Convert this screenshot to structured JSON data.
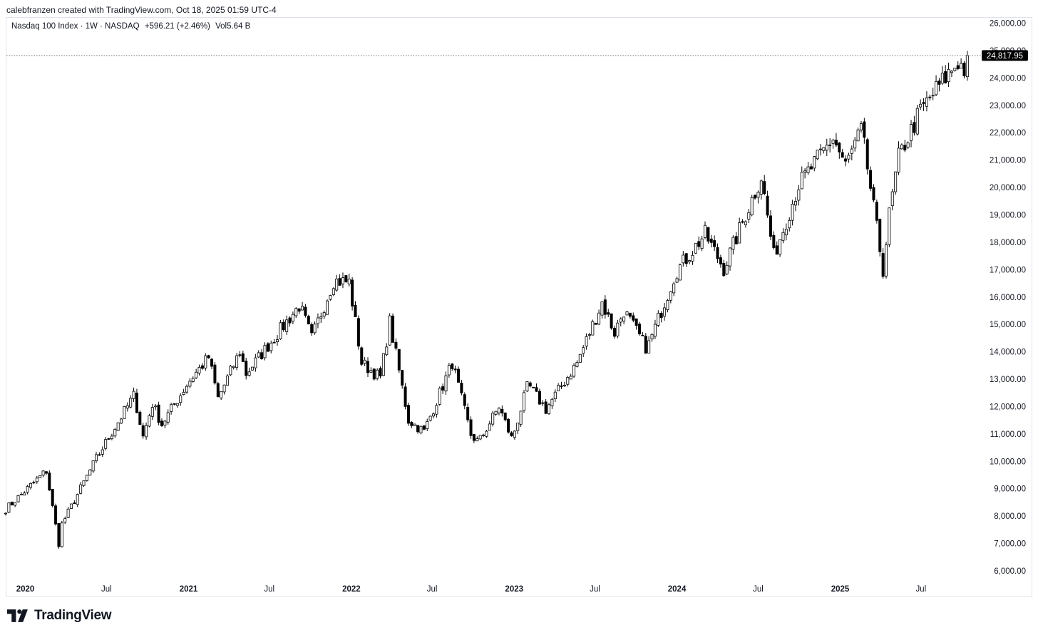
{
  "attribution": "calebfranzen created with TradingView.com, Oct 18, 2025 01:59 UTC-4",
  "legend": {
    "symbol": "Nasdaq 100 Index · 1W · NASDAQ",
    "change": "+596.21 (+2.46%)",
    "volume": "Vol5.64 B"
  },
  "brand": "TradingView",
  "colors": {
    "up": "#ffffff",
    "down": "#000000",
    "wick": "#000000",
    "price_tag": "#000000",
    "price_line": "#787b86"
  },
  "chart_data": {
    "type": "candlestick",
    "title": "Nasdaq 100 Index · 1W · NASDAQ",
    "interval": "1W",
    "last_price": 24817.95,
    "last_price_label": "24,817.95",
    "y_axis": {
      "range": [
        5700,
        26300
      ],
      "ticks": [
        6000,
        7000,
        8000,
        9000,
        10000,
        11000,
        12000,
        13000,
        14000,
        15000,
        16000,
        17000,
        18000,
        19000,
        20000,
        21000,
        22000,
        23000,
        24000,
        25000,
        26000
      ],
      "tick_labels": [
        "6,000.00",
        "7,000.00",
        "8,000.00",
        "9,000.00",
        "10,000.00",
        "11,000.00",
        "12,000.00",
        "13,000.00",
        "14,000.00",
        "15,000.00",
        "16,000.00",
        "17,000.00",
        "18,000.00",
        "19,000.00",
        "20,000.00",
        "21,000.00",
        "22,000.00",
        "23,000.00",
        "24,000.00",
        "25,000.00",
        "26,000.00"
      ]
    },
    "x_axis": {
      "range": [
        "2019-11-18",
        "2025-11-03"
      ],
      "ticks": [
        {
          "date": "2020-01-01",
          "label": "2020",
          "bold": true
        },
        {
          "date": "2020-07-01",
          "label": "Jul",
          "bold": false
        },
        {
          "date": "2021-01-01",
          "label": "2021",
          "bold": true
        },
        {
          "date": "2021-07-01",
          "label": "Jul",
          "bold": false
        },
        {
          "date": "2022-01-01",
          "label": "2022",
          "bold": true
        },
        {
          "date": "2022-07-01",
          "label": "Jul",
          "bold": false
        },
        {
          "date": "2023-01-01",
          "label": "2023",
          "bold": true
        },
        {
          "date": "2023-07-01",
          "label": "Jul",
          "bold": false
        },
        {
          "date": "2024-01-01",
          "label": "2024",
          "bold": true
        },
        {
          "date": "2024-07-01",
          "label": "Jul",
          "bold": false
        },
        {
          "date": "2025-01-01",
          "label": "2025",
          "bold": true
        },
        {
          "date": "2025-07-01",
          "label": "Jul",
          "bold": false
        }
      ]
    },
    "weekly_close_keypoints": [
      [
        "2019-11-18",
        8250
      ],
      [
        "2020-02-17",
        9650
      ],
      [
        "2020-03-16",
        6994
      ],
      [
        "2020-03-23",
        7700
      ],
      [
        "2020-06-08",
        10100
      ],
      [
        "2020-09-01",
        12420
      ],
      [
        "2020-09-21",
        10900
      ],
      [
        "2020-10-12",
        12100
      ],
      [
        "2020-11-02",
        11350
      ],
      [
        "2021-01-01",
        12900
      ],
      [
        "2021-02-15",
        13800
      ],
      [
        "2021-03-08",
        12300
      ],
      [
        "2021-04-26",
        14000
      ],
      [
        "2021-05-10",
        13200
      ],
      [
        "2021-09-07",
        15700
      ],
      [
        "2021-10-04",
        14500
      ],
      [
        "2021-11-22",
        16600
      ],
      [
        "2021-12-27",
        16550
      ],
      [
        "2022-01-24",
        13600
      ],
      [
        "2022-03-07",
        13050
      ],
      [
        "2022-03-28",
        15100
      ],
      [
        "2022-05-09",
        11500
      ],
      [
        "2022-06-13",
        11090
      ],
      [
        "2022-08-15",
        13600
      ],
      [
        "2022-09-26",
        10970
      ],
      [
        "2022-10-13",
        10690
      ],
      [
        "2022-11-28",
        12000
      ],
      [
        "2022-12-27",
        10800
      ],
      [
        "2023-02-01",
        12800
      ],
      [
        "2023-03-13",
        11900
      ],
      [
        "2023-05-22",
        13600
      ],
      [
        "2023-07-17",
        15800
      ],
      [
        "2023-08-14",
        14700
      ],
      [
        "2023-09-04",
        15500
      ],
      [
        "2023-10-26",
        14100
      ],
      [
        "2023-12-29",
        16900
      ],
      [
        "2024-03-04",
        18300
      ],
      [
        "2024-04-15",
        17040
      ],
      [
        "2024-07-08",
        20400
      ],
      [
        "2024-08-05",
        17500
      ],
      [
        "2024-09-30",
        20100
      ],
      [
        "2024-12-16",
        21800
      ],
      [
        "2025-01-13",
        20800
      ],
      [
        "2025-02-18",
        22100
      ],
      [
        "2025-04-07",
        17000
      ],
      [
        "2025-04-21",
        19000
      ],
      [
        "2025-05-12",
        21100
      ],
      [
        "2025-06-30",
        22800
      ],
      [
        "2025-08-01",
        23500
      ],
      [
        "2025-09-22",
        24600
      ],
      [
        "2025-10-10",
        24220
      ],
      [
        "2025-10-17",
        24817.95
      ]
    ]
  }
}
